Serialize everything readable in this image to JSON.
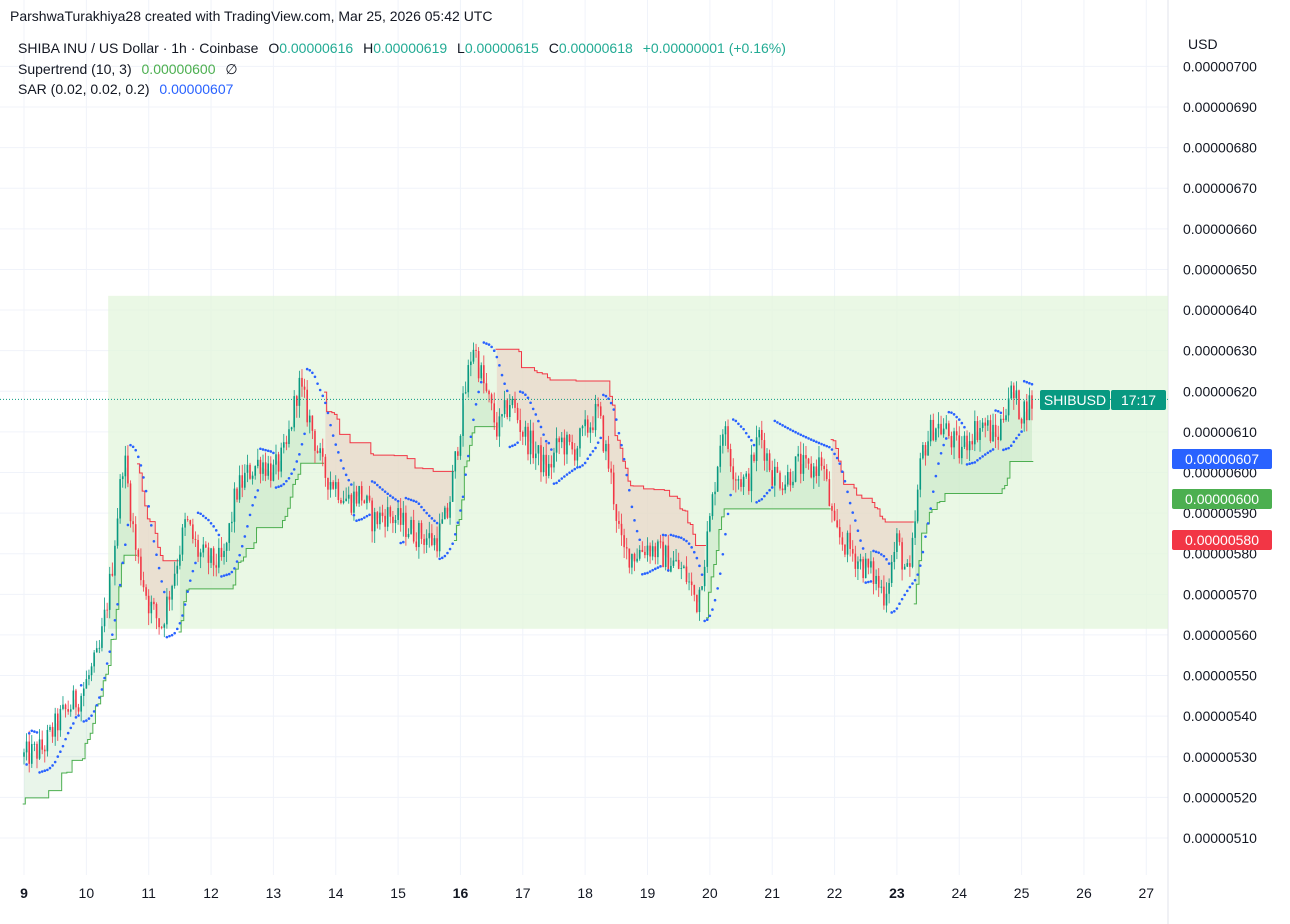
{
  "header": {
    "credit": "ParshwaTurakhiya28 created with TradingView.com, Mar 25, 2026 05:42 UTC"
  },
  "legend": {
    "symbol": "SHIBA INU / US Dollar · 1h · Coinbase",
    "o_label": "O",
    "o": "0.00000616",
    "h_label": "H",
    "h": "0.00000619",
    "l_label": "L",
    "l": "0.00000615",
    "c_label": "C",
    "c": "0.00000618",
    "change": "+0.00000001 (+0.16%)",
    "supertrend_label": "Supertrend (10, 3)",
    "supertrend_value": "0.00000600",
    "supertrend_icon": "∅",
    "sar_label": "SAR (0.02, 0.02, 0.2)",
    "sar_value": "0.00000607"
  },
  "axis": {
    "currency": "USD"
  },
  "badges": {
    "symbol": "SHIBUSD",
    "countdown": "17:17",
    "sar": "0.00000607",
    "supertrend": "0.00000600",
    "low_marker": "0.00000580"
  },
  "colors": {
    "up": "#089981",
    "down": "#f23645",
    "sar": "#2962ff",
    "st_up": "#4caf50",
    "st_down": "#f23645",
    "range": "#e3f5dc"
  },
  "chart_data": {
    "type": "candlestick",
    "title": "SHIBA INU / US Dollar · 1h · Coinbase",
    "unit": "1e-8 USD",
    "y_ticks": [
      "0.00000700",
      "0.00000690",
      "0.00000680",
      "0.00000670",
      "0.00000660",
      "0.00000650",
      "0.00000640",
      "0.00000630",
      "0.00000620",
      "0.00000610",
      "0.00000600",
      "0.00000590",
      "0.00000580",
      "0.00000570",
      "0.00000560",
      "0.00000550",
      "0.00000540",
      "0.00000530",
      "0.00000520",
      "0.00000510"
    ],
    "y_tick_values": [
      700,
      690,
      680,
      670,
      660,
      650,
      640,
      630,
      620,
      610,
      600,
      590,
      580,
      570,
      560,
      550,
      540,
      530,
      520,
      510
    ],
    "x_ticks": [
      "9",
      "10",
      "11",
      "12",
      "13",
      "14",
      "15",
      "16",
      "17",
      "18",
      "19",
      "20",
      "21",
      "22",
      "23",
      "24",
      "25",
      "26",
      "27"
    ],
    "x_tick_days": [
      9,
      10,
      11,
      12,
      13,
      14,
      15,
      16,
      17,
      18,
      19,
      20,
      21,
      22,
      23,
      24,
      25,
      26,
      27
    ],
    "x_bold": [
      "9",
      "16",
      "23"
    ],
    "range_box": {
      "from_day": 10.35,
      "to_day": 27.4,
      "high": 643.5,
      "low": 561.5
    },
    "last_price": 618,
    "path_days": [
      9.0,
      9.3,
      9.6,
      9.9,
      10.2,
      10.4,
      10.6,
      10.8,
      11.0,
      11.2,
      11.4,
      11.6,
      11.8,
      12.0,
      12.2,
      12.4,
      12.6,
      12.8,
      13.0,
      13.2,
      13.4,
      13.6,
      13.8,
      14.0,
      14.2,
      14.4,
      14.6,
      14.8,
      15.0,
      15.3,
      15.6,
      15.8,
      16.0,
      16.2,
      16.4,
      16.6,
      16.8,
      17.0,
      17.2,
      17.4,
      17.6,
      17.8,
      18.0,
      18.2,
      18.4,
      18.6,
      18.8,
      19.0,
      19.2,
      19.4,
      19.6,
      19.8,
      20.0,
      20.2,
      20.4,
      20.6,
      20.8,
      21.0,
      21.2,
      21.4,
      21.6,
      21.8,
      22.0,
      22.2,
      22.4,
      22.6,
      22.8,
      23.0,
      23.2,
      23.4,
      23.6,
      23.8,
      24.0,
      24.2,
      24.4,
      24.6,
      24.8,
      25.0,
      25.2
    ],
    "path_close": [
      530,
      532,
      540,
      545,
      555,
      575,
      605,
      580,
      568,
      562,
      575,
      588,
      580,
      578,
      578,
      595,
      600,
      603,
      600,
      605,
      622,
      612,
      600,
      597,
      593,
      595,
      588,
      590,
      588,
      585,
      583,
      590,
      612,
      632,
      620,
      610,
      618,
      610,
      605,
      600,
      608,
      605,
      610,
      615,
      600,
      580,
      580,
      582,
      580,
      578,
      575,
      568,
      588,
      612,
      600,
      597,
      610,
      600,
      598,
      602,
      600,
      603,
      585,
      582,
      578,
      575,
      570,
      583,
      573,
      605,
      612,
      610,
      605,
      610,
      612,
      608,
      620,
      615,
      618
    ]
  }
}
